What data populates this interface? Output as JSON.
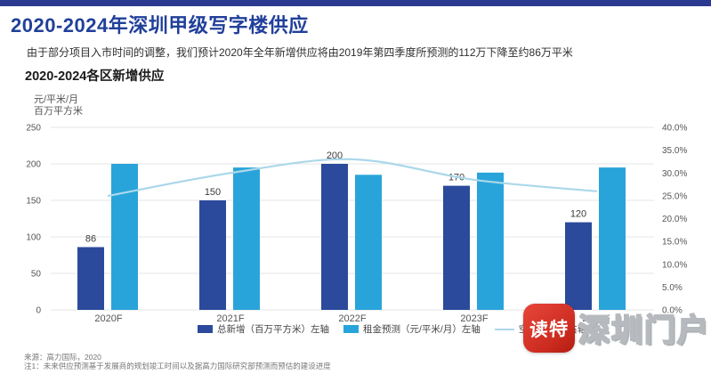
{
  "page": {
    "title": "2020-2024年深圳甲级写字楼供应",
    "subtitle": "由于部分项目入市时间的调整，我们预计2020年全年新增供应将由2019年第四季度所预测的112万下降至约86万平米",
    "section_title": "2020-2024各区新增供应",
    "top_bar_color": "#2B3A90",
    "title_color": "#21409A"
  },
  "axis_units": {
    "line1": "元/平米/月",
    "line2": "百万平方米"
  },
  "chart_data": {
    "type": "bar",
    "subtype": "grouped bars with overlay line",
    "title": "2020-2024各区新增供应",
    "categories": [
      "2020F",
      "2021F",
      "2022F",
      "2023F",
      "2024F"
    ],
    "series": [
      {
        "name": "总新增（百万平方米）左轴",
        "type": "bar",
        "axis": "left",
        "color": "#2B4A9B",
        "values": [
          86,
          150,
          200,
          170,
          120
        ],
        "value_labels_shown": true
      },
      {
        "name": "租金预测（元/平米/月）左轴",
        "type": "bar",
        "axis": "left",
        "color": "#29A4DA",
        "values": [
          200,
          195,
          185,
          188,
          195
        ],
        "value_labels_shown": false
      },
      {
        "name": "空置率预测 右轴",
        "type": "line",
        "axis": "right",
        "color": "#ABD8EA",
        "values": [
          25.0,
          30.0,
          33.0,
          28.5,
          26.0
        ]
      }
    ],
    "left_axis": {
      "label_line1": "元/平米/月",
      "label_line2": "百万平方米",
      "ticks": [
        0,
        50,
        100,
        150,
        200,
        250
      ],
      "min": 0,
      "max": 250
    },
    "right_axis": {
      "ticks": [
        "0.0%",
        "5.0%",
        "10.0%",
        "15.0%",
        "20.0%",
        "25.0%",
        "30.0%",
        "35.0%",
        "40.0%"
      ],
      "min": 0,
      "max": 40
    },
    "grid": true,
    "legend_position": "bottom"
  },
  "footer": {
    "source": "来源：高力国际，2020",
    "note": "注1：未来供应预测基于发展商的规划竣工时间以及据高力国际研究部预测而预估的建设进度"
  },
  "watermark": {
    "app_name": "读特",
    "site_name": "深圳门户",
    "badge_color": "#CB2A1E"
  }
}
